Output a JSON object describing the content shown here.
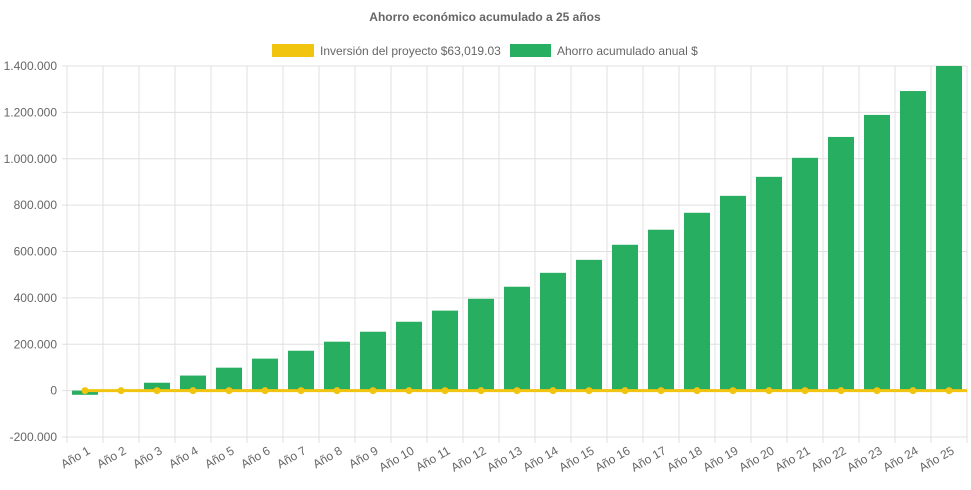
{
  "chart_data": {
    "type": "bar",
    "title": "Ahorro económico acumulado a 25 años",
    "categories": [
      "Año 1",
      "Año 2",
      "Año 3",
      "Año 4",
      "Año 5",
      "Año 6",
      "Año 7",
      "Año 8",
      "Año 9",
      "Año 10",
      "Año 11",
      "Año 12",
      "Año 13",
      "Año 14",
      "Año 15",
      "Año 16",
      "Año 17",
      "Año 18",
      "Año 19",
      "Año 20",
      "Año 21",
      "Año 22",
      "Año 23",
      "Año 24",
      "Año 25"
    ],
    "series": [
      {
        "name": "Inversión del proyecto $63,019.03",
        "type": "line",
        "color": "#f1c40f",
        "values": [
          0,
          0,
          0,
          0,
          0,
          0,
          0,
          0,
          0,
          0,
          0,
          0,
          0,
          0,
          0,
          0,
          0,
          0,
          0,
          0,
          0,
          0,
          0,
          0,
          0
        ]
      },
      {
        "name": "Ahorro acumulado anual $",
        "type": "bar",
        "color": "#27ae60",
        "values": [
          -18000,
          3000,
          34000,
          65000,
          99000,
          138000,
          172000,
          211000,
          254000,
          297000,
          345000,
          396000,
          448000,
          508000,
          564000,
          629000,
          694000,
          767000,
          840000,
          922000,
          1004000,
          1094000,
          1189000,
          1292000,
          1400000
        ]
      }
    ],
    "ylim": [
      -200000,
      1400000
    ],
    "yticks": [
      "1.400.000",
      "1.200.000",
      "1.000.000",
      "800.000",
      "600.000",
      "400.000",
      "200.000",
      "0",
      "-200.000"
    ],
    "grid": true,
    "legend": "top"
  }
}
